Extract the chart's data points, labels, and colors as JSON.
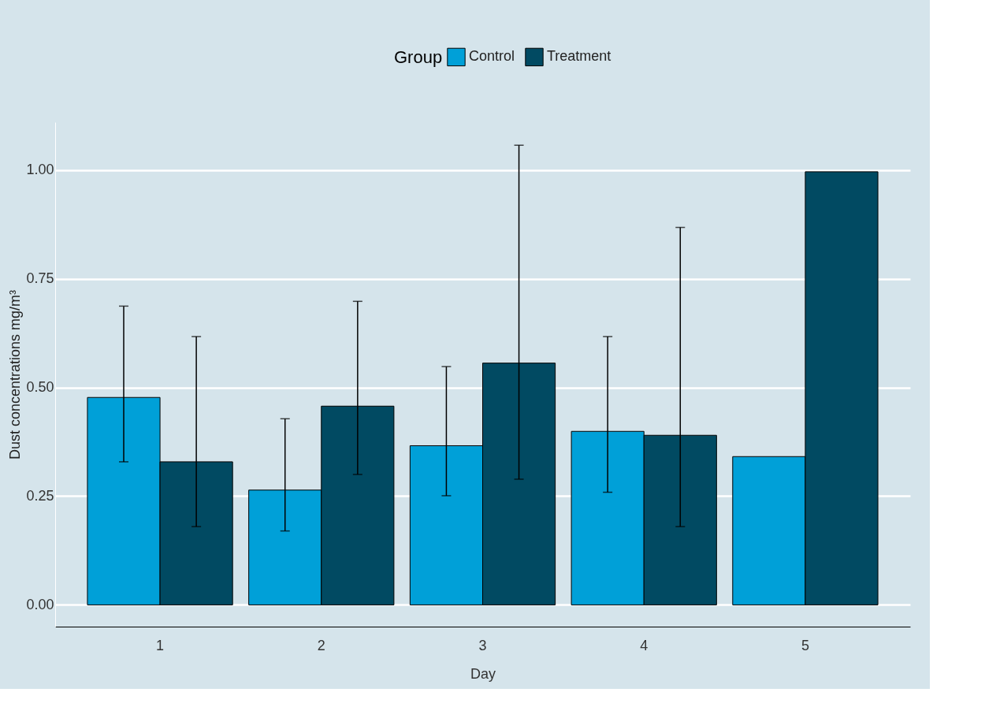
{
  "chart_data": {
    "type": "bar",
    "xlabel": "Day",
    "ylabel": "Dust concentrations mg/m³",
    "legend_title": "Group",
    "categories": [
      "1",
      "2",
      "3",
      "4",
      "5"
    ],
    "series": [
      {
        "name": "Control",
        "color": "#00a0d8",
        "values": [
          0.477,
          0.264,
          0.366,
          0.399,
          0.341
        ],
        "errors": [
          [
            0.329,
            0.687
          ],
          [
            0.17,
            0.428
          ],
          [
            0.251,
            0.548
          ],
          [
            0.259,
            0.617
          ],
          null
        ]
      },
      {
        "name": "Treatment",
        "color": "#014a62",
        "values": [
          0.329,
          0.457,
          0.556,
          0.39,
          0.996
        ],
        "errors": [
          [
            0.18,
            0.617
          ],
          [
            0.3,
            0.698
          ],
          [
            0.289,
            1.057
          ],
          [
            0.18,
            0.868
          ],
          null
        ]
      }
    ],
    "ylim": [
      -0.05,
      1.11
    ],
    "yticks": [
      {
        "value": 0,
        "label": "0.00"
      },
      {
        "value": 0.25,
        "label": "0.25"
      },
      {
        "value": 0.5,
        "label": "0.50"
      },
      {
        "value": 0.75,
        "label": "0.75"
      },
      {
        "value": 1,
        "label": "1.00"
      }
    ],
    "grid": "y",
    "legend": "top"
  }
}
